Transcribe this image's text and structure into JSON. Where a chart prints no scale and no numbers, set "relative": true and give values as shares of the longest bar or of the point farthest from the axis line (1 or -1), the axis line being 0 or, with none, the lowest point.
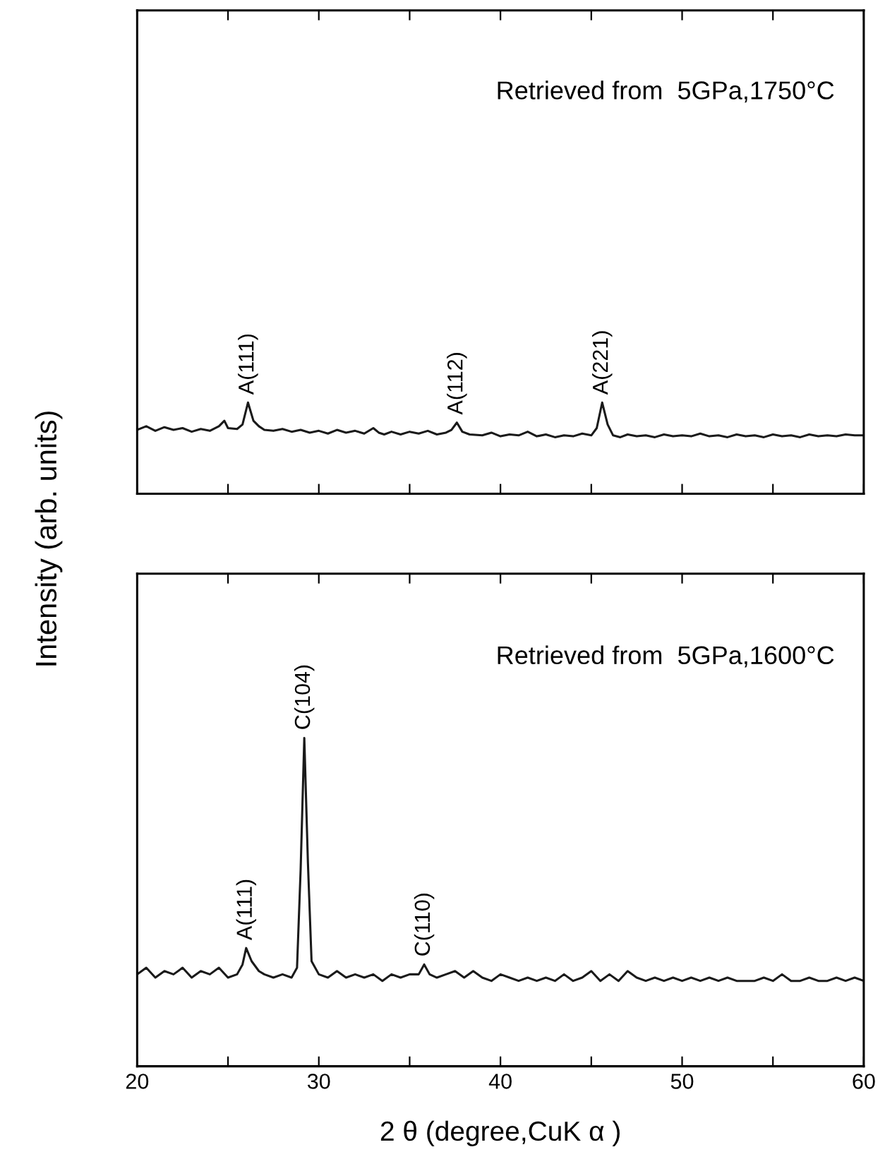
{
  "chart_data": [
    {
      "type": "line",
      "title": "Retrieved from  5GPa,1750°C",
      "ylabel": "Intensity (arb. units)",
      "relative": true,
      "xlim": [
        20,
        60
      ],
      "xticks": [
        {
          "value": 20,
          "label": null
        },
        {
          "value": 25,
          "label": null
        },
        {
          "value": 30,
          "label": null
        },
        {
          "value": 35,
          "label": null
        },
        {
          "value": 40,
          "label": null
        },
        {
          "value": 45,
          "label": null
        },
        {
          "value": 50,
          "label": null
        },
        {
          "value": 55,
          "label": null
        },
        {
          "value": 60,
          "label": null
        }
      ],
      "tick_labels": false,
      "grid": false,
      "marker": "none",
      "line_style": "solid",
      "annotations": [
        {
          "text": "A(111)",
          "x": 26.1,
          "y": 1.0
        },
        {
          "text": "A(112)",
          "x": 37.6,
          "y": 0.78
        },
        {
          "text": "A(221)",
          "x": 45.6,
          "y": 1.0
        }
      ],
      "x": [
        20,
        20.5,
        21,
        21.5,
        22,
        22.5,
        23,
        23.5,
        24,
        24.5,
        24.8,
        25,
        25.5,
        25.8,
        26.1,
        26.4,
        26.7,
        27,
        27.5,
        28,
        28.5,
        29,
        29.5,
        30,
        30.5,
        31,
        31.5,
        32,
        32.5,
        33,
        33.3,
        33.6,
        34,
        34.5,
        35,
        35.5,
        36,
        36.5,
        37,
        37.3,
        37.6,
        37.9,
        38.3,
        39,
        39.5,
        40,
        40.5,
        41,
        41.5,
        42,
        42.5,
        43,
        43.5,
        44,
        44.5,
        45,
        45.3,
        45.6,
        45.9,
        46.2,
        46.6,
        47,
        47.5,
        48,
        48.5,
        49,
        49.5,
        50,
        50.5,
        51,
        51.5,
        52,
        52.5,
        53,
        53.5,
        54,
        54.5,
        55,
        55.5,
        56,
        56.5,
        57,
        57.5,
        58,
        58.5,
        59,
        59.5,
        60
      ],
      "series": [
        {
          "color": "#1a1a1a",
          "values": [
            0.7,
            0.74,
            0.69,
            0.73,
            0.7,
            0.72,
            0.68,
            0.71,
            0.69,
            0.74,
            0.8,
            0.72,
            0.71,
            0.76,
            1.0,
            0.8,
            0.74,
            0.7,
            0.69,
            0.71,
            0.68,
            0.7,
            0.67,
            0.69,
            0.66,
            0.7,
            0.67,
            0.69,
            0.66,
            0.72,
            0.67,
            0.65,
            0.68,
            0.65,
            0.68,
            0.66,
            0.69,
            0.65,
            0.67,
            0.7,
            0.78,
            0.68,
            0.65,
            0.64,
            0.67,
            0.63,
            0.65,
            0.64,
            0.68,
            0.63,
            0.65,
            0.62,
            0.64,
            0.63,
            0.66,
            0.64,
            0.72,
            1.0,
            0.76,
            0.64,
            0.62,
            0.65,
            0.63,
            0.64,
            0.62,
            0.65,
            0.63,
            0.64,
            0.63,
            0.66,
            0.63,
            0.64,
            0.62,
            0.65,
            0.63,
            0.64,
            0.62,
            0.65,
            0.63,
            0.64,
            0.62,
            0.65,
            0.63,
            0.64,
            0.63,
            0.65,
            0.64,
            0.64
          ]
        }
      ]
    },
    {
      "type": "line",
      "title": "Retrieved from  5GPa,1600°C",
      "xlabel": "2 θ (degree,CuK α )",
      "relative": true,
      "xlim": [
        20,
        60
      ],
      "xticks": [
        20,
        {
          "value": 25,
          "label": null
        },
        30,
        {
          "value": 35,
          "label": null
        },
        40,
        {
          "value": 45,
          "label": null
        },
        50,
        {
          "value": 55,
          "label": null
        },
        60
      ],
      "tick_labels": "x",
      "grid": false,
      "marker": "none",
      "line_style": "solid",
      "annotations": [
        {
          "text": "A(111)",
          "x": 26.0,
          "y": 0.36
        },
        {
          "text": "C(104)",
          "x": 29.2,
          "y": 1.0
        },
        {
          "text": "C(110)",
          "x": 35.8,
          "y": 0.31
        }
      ],
      "x": [
        20,
        20.5,
        21,
        21.5,
        22,
        22.5,
        23,
        23.5,
        24,
        24.5,
        25,
        25.5,
        25.8,
        26.0,
        26.3,
        26.7,
        27,
        27.5,
        28,
        28.5,
        28.8,
        29.0,
        29.2,
        29.4,
        29.6,
        30,
        30.5,
        31,
        31.5,
        32,
        32.5,
        33,
        33.5,
        34,
        34.5,
        35,
        35.5,
        35.8,
        36.1,
        36.5,
        37,
        37.5,
        38,
        38.5,
        39,
        39.5,
        40,
        40.5,
        41,
        41.5,
        42,
        42.5,
        43,
        43.5,
        44,
        44.5,
        45,
        45.5,
        46,
        46.5,
        47,
        47.5,
        48,
        48.5,
        49,
        49.5,
        50,
        50.5,
        51,
        51.5,
        52,
        52.5,
        53,
        53.5,
        54,
        54.5,
        55,
        55.5,
        56,
        56.5,
        57,
        57.5,
        58,
        58.5,
        59,
        59.5,
        60
      ],
      "series": [
        {
          "color": "#1a1a1a",
          "values": [
            0.28,
            0.3,
            0.27,
            0.29,
            0.28,
            0.3,
            0.27,
            0.29,
            0.28,
            0.3,
            0.27,
            0.28,
            0.31,
            0.36,
            0.32,
            0.29,
            0.28,
            0.27,
            0.28,
            0.27,
            0.3,
            0.6,
            1.0,
            0.62,
            0.32,
            0.28,
            0.27,
            0.29,
            0.27,
            0.28,
            0.27,
            0.28,
            0.26,
            0.28,
            0.27,
            0.28,
            0.28,
            0.31,
            0.28,
            0.27,
            0.28,
            0.29,
            0.27,
            0.29,
            0.27,
            0.26,
            0.28,
            0.27,
            0.26,
            0.27,
            0.26,
            0.27,
            0.26,
            0.28,
            0.26,
            0.27,
            0.29,
            0.26,
            0.28,
            0.26,
            0.29,
            0.27,
            0.26,
            0.27,
            0.26,
            0.27,
            0.26,
            0.27,
            0.26,
            0.27,
            0.26,
            0.27,
            0.26,
            0.26,
            0.26,
            0.27,
            0.26,
            0.28,
            0.26,
            0.26,
            0.27,
            0.26,
            0.26,
            0.27,
            0.26,
            0.27,
            0.26
          ]
        }
      ]
    }
  ]
}
